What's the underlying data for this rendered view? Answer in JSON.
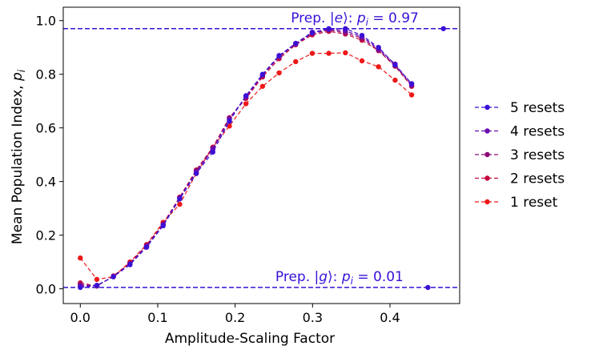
{
  "chart_data": {
    "type": "line",
    "xlabel": "Amplitude-Scaling Factor",
    "ylabel": "Mean Population Index, ",
    "ylabel_var": "p",
    "ylabel_sub": "i",
    "xlim": [
      -0.022,
      0.49
    ],
    "ylim": [
      -0.055,
      1.05
    ],
    "xticks": [
      0.0,
      0.1,
      0.2,
      0.3,
      0.4
    ],
    "xtick_labels": [
      "0.0",
      "0.1",
      "0.2",
      "0.3",
      "0.4"
    ],
    "yticks": [
      0.0,
      0.2,
      0.4,
      0.6,
      0.8,
      1.0
    ],
    "ytick_labels": [
      "0.0",
      "0.2",
      "0.4",
      "0.6",
      "0.8",
      "1.0"
    ],
    "grid": false,
    "legend_position": "center-right-outside",
    "x": [
      0.0,
      0.0214,
      0.0428,
      0.0642,
      0.0856,
      0.107,
      0.1284,
      0.1498,
      0.1712,
      0.1926,
      0.214,
      0.2354,
      0.2568,
      0.2782,
      0.2996,
      0.321,
      0.3424,
      0.3638,
      0.3852,
      0.4066,
      0.428
    ],
    "series": [
      {
        "name": "5 resets",
        "color": "#3a10d6",
        "values": [
          0.005,
          0.012,
          0.045,
          0.09,
          0.155,
          0.235,
          0.335,
          0.43,
          0.51,
          0.625,
          0.72,
          0.8,
          0.87,
          0.915,
          0.955,
          0.97,
          0.97,
          0.945,
          0.9,
          0.835,
          0.765
        ]
      },
      {
        "name": "4 resets",
        "color": "#6a0cb0",
        "values": [
          0.01,
          0.013,
          0.045,
          0.092,
          0.158,
          0.238,
          0.338,
          0.435,
          0.52,
          0.632,
          0.718,
          0.798,
          0.868,
          0.915,
          0.957,
          0.968,
          0.962,
          0.94,
          0.895,
          0.838,
          0.762
        ]
      },
      {
        "name": "3 resets",
        "color": "#8e0878",
        "values": [
          0.015,
          0.012,
          0.046,
          0.094,
          0.16,
          0.24,
          0.34,
          0.44,
          0.525,
          0.636,
          0.715,
          0.795,
          0.865,
          0.912,
          0.952,
          0.965,
          0.955,
          0.935,
          0.89,
          0.832,
          0.758
        ]
      },
      {
        "name": "2 resets",
        "color": "#c4083e",
        "values": [
          0.022,
          0.01,
          0.048,
          0.097,
          0.163,
          0.243,
          0.342,
          0.443,
          0.528,
          0.638,
          0.71,
          0.79,
          0.858,
          0.91,
          0.947,
          0.96,
          0.95,
          0.927,
          0.888,
          0.83,
          0.755
        ]
      },
      {
        "name": "1 reset",
        "color": "#ee1818",
        "values": [
          0.115,
          0.035,
          0.045,
          0.1,
          0.165,
          0.248,
          0.315,
          0.43,
          0.528,
          0.607,
          0.69,
          0.755,
          0.805,
          0.847,
          0.878,
          0.878,
          0.88,
          0.85,
          0.828,
          0.778,
          0.723
        ]
      }
    ],
    "reference_lines": [
      {
        "label_pre": "Prep. |",
        "label_state": "e",
        "label_mid": "⟩: ",
        "label_var": "p",
        "label_sub": "i",
        "label_post": " = 0.97",
        "y": 0.97,
        "label_x": 0.272,
        "color": "#3a10d6"
      },
      {
        "label_pre": "Prep. |",
        "label_state": "g",
        "label_mid": "⟩: ",
        "label_var": "p",
        "label_sub": "i",
        "label_post": " = 0.01",
        "y": 0.005,
        "label_x": 0.252,
        "color": "#3a10d6"
      }
    ],
    "reference_points": [
      {
        "x": 0.469,
        "y": 0.97,
        "color": "#3a10d6"
      },
      {
        "x": 0.449,
        "y": 0.005,
        "color": "#3a10d6"
      }
    ]
  }
}
